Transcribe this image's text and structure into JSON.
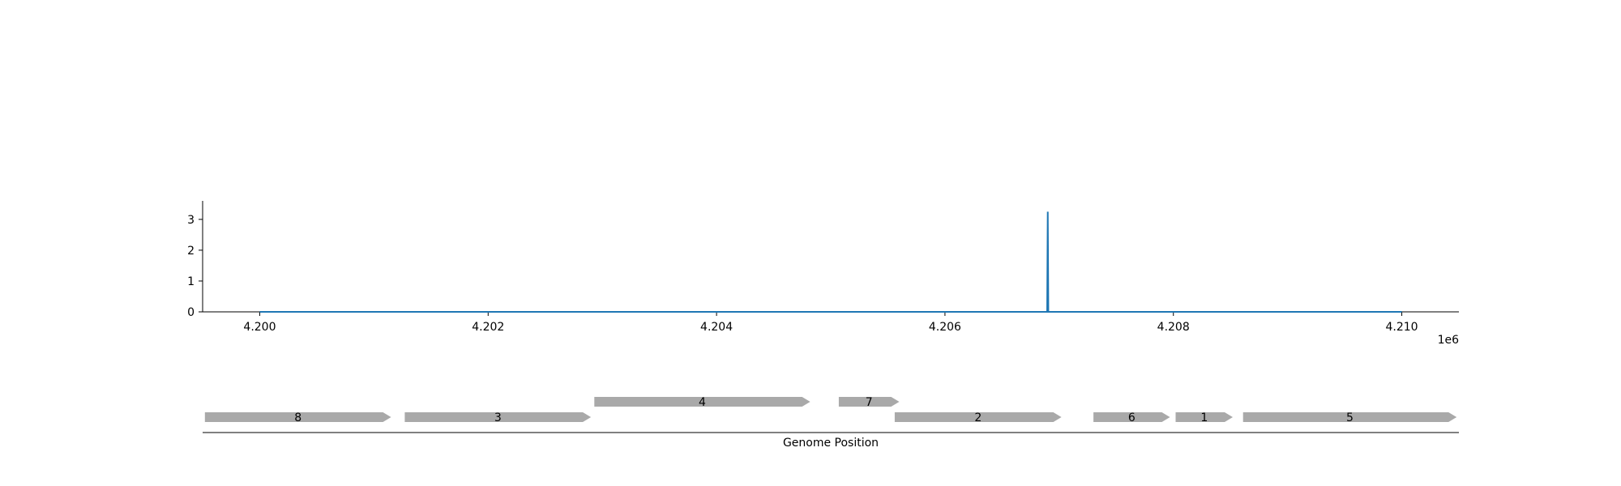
{
  "chart_data": [
    {
      "type": "line",
      "title": "",
      "xlabel": "",
      "ylabel": "",
      "x_offset_label": "1e6",
      "xlim": [
        4199500,
        4210500
      ],
      "ylim": [
        0,
        3.6
      ],
      "x_ticks": [
        4200000,
        4202000,
        4204000,
        4206000,
        4208000,
        4210000
      ],
      "x_tick_labels": [
        "4.200",
        "4.202",
        "4.204",
        "4.206",
        "4.208",
        "4.210"
      ],
      "y_ticks": [
        0,
        1,
        2,
        3
      ],
      "y_tick_labels": [
        "0",
        "1",
        "2",
        "3"
      ],
      "grid": false,
      "colors": {
        "line": "#1f77b4"
      },
      "series": [
        {
          "x": [
            4200000,
            4206895,
            4206900,
            4206905,
            4210000
          ],
          "y": [
            0,
            0,
            3.25,
            0,
            0
          ]
        }
      ]
    },
    {
      "type": "gene-track",
      "xlabel": "Genome Position",
      "xlim": [
        4199500,
        4210500
      ],
      "colors": {
        "gene": "#a9a9a9"
      },
      "genes": [
        {
          "label": "8",
          "start": 4199520,
          "end": 4201150,
          "row": 0
        },
        {
          "label": "3",
          "start": 4201270,
          "end": 4202900,
          "row": 0
        },
        {
          "label": "4",
          "start": 4202930,
          "end": 4204820,
          "row": 1
        },
        {
          "label": "7",
          "start": 4205070,
          "end": 4205600,
          "row": 1
        },
        {
          "label": "2",
          "start": 4205560,
          "end": 4207020,
          "row": 0
        },
        {
          "label": "6",
          "start": 4207300,
          "end": 4207970,
          "row": 0
        },
        {
          "label": "1",
          "start": 4208020,
          "end": 4208520,
          "row": 0
        },
        {
          "label": "5",
          "start": 4208610,
          "end": 4210480,
          "row": 0
        }
      ]
    }
  ]
}
